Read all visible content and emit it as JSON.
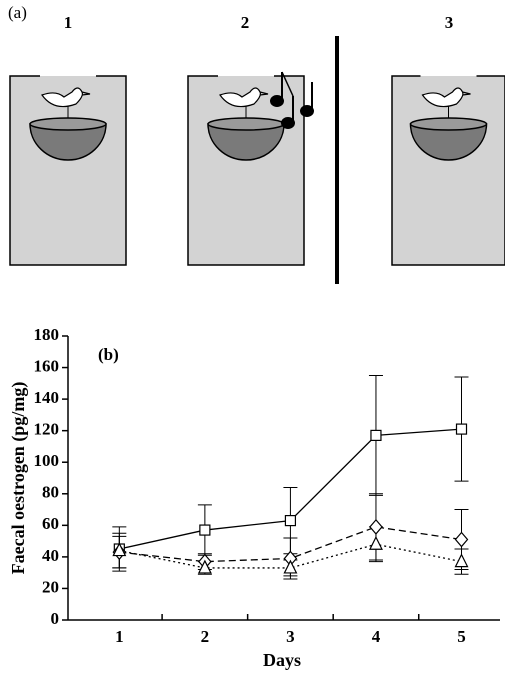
{
  "panel_a": {
    "label": "(a)",
    "cages": [
      "1",
      "2",
      "3"
    ]
  },
  "chart_data": {
    "type": "line",
    "panel_label": "(b)",
    "x_label": "Days",
    "y_label": "Faecal oestrogen (pg/mg)",
    "x": [
      1,
      2,
      3,
      4,
      5
    ],
    "xlim": [
      0.4,
      5.45
    ],
    "xticks": [
      1,
      2,
      3,
      4,
      5
    ],
    "xminorticks": [
      1.5,
      2.5,
      3.5,
      4.5
    ],
    "ylim": [
      0,
      180
    ],
    "yticks": [
      0,
      20,
      40,
      60,
      80,
      100,
      120,
      140,
      160,
      180
    ],
    "series": [
      {
        "marker": "square",
        "dash": "solid",
        "color": "#000000",
        "values": [
          45,
          57,
          63,
          117,
          121
        ],
        "errors": [
          14,
          16,
          21,
          38,
          33
        ]
      },
      {
        "marker": "diamond",
        "dash": "dashed",
        "color": "#000000",
        "values": [
          43,
          37,
          39,
          59,
          51
        ],
        "errors": [
          10,
          5,
          13,
          21,
          19
        ]
      },
      {
        "marker": "triangle",
        "dash": "dotted",
        "color": "#000000",
        "values": [
          44,
          33,
          33,
          48,
          37
        ],
        "errors": [
          11,
          4,
          5,
          11,
          8
        ]
      }
    ]
  }
}
